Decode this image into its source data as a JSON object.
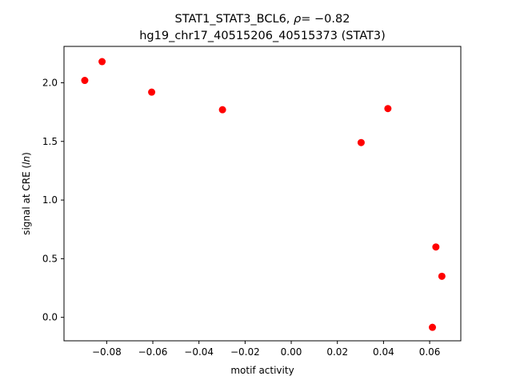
{
  "chart_data": {
    "type": "scatter",
    "title_line1_prefix": "STAT1_STAT3_BCL6, ",
    "title_rho_symbol": "ρ",
    "title_rho_value": "= −0.82",
    "title_line2": "hg19_chr17_40515206_40515373 (STAT3)",
    "xlabel": "motif activity",
    "ylabel_prefix": "signal at CRE (",
    "ylabel_italic": "ln",
    "ylabel_suffix": ")",
    "xlim": [
      -0.0985,
      0.0735
    ],
    "ylim": [
      -0.2,
      2.31
    ],
    "xticks": [
      -0.08,
      -0.06,
      -0.04,
      -0.02,
      0.0,
      0.02,
      0.04,
      0.06
    ],
    "xtick_labels": [
      "−0.08",
      "−0.06",
      "−0.04",
      "−0.02",
      "0.00",
      "0.02",
      "0.04",
      "0.06"
    ],
    "yticks": [
      0.0,
      0.5,
      1.0,
      1.5,
      2.0
    ],
    "ytick_labels": [
      "0.0",
      "0.5",
      "1.0",
      "1.5",
      "2.0"
    ],
    "marker_color": "#ff0000",
    "grid": false,
    "points": [
      {
        "x": -0.0895,
        "y": 2.02
      },
      {
        "x": -0.082,
        "y": 2.18
      },
      {
        "x": -0.0605,
        "y": 1.92
      },
      {
        "x": -0.0298,
        "y": 1.77
      },
      {
        "x": 0.0303,
        "y": 1.49
      },
      {
        "x": 0.0419,
        "y": 1.78
      },
      {
        "x": 0.0627,
        "y": 0.6
      },
      {
        "x": 0.0653,
        "y": 0.35
      },
      {
        "x": 0.0612,
        "y": -0.085
      }
    ]
  }
}
